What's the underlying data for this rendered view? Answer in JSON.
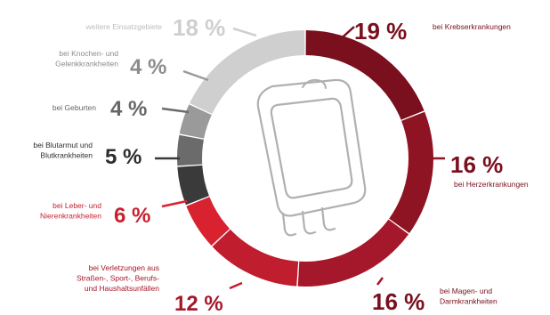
{
  "chart_data": {
    "type": "pie",
    "style": "donut",
    "unit": "%",
    "slices": [
      {
        "value": 19,
        "label_lines": [
          "bei Krebserkrankungen"
        ],
        "color": "#7a0f1e",
        "pct_color": "#7a0f1e",
        "label_color": "#7a0f1e"
      },
      {
        "value": 16,
        "label_lines": [
          "bei Herzerkrankungen"
        ],
        "color": "#8e1323",
        "pct_color": "#7a0f1e",
        "label_color": "#7a0f1e"
      },
      {
        "value": 16,
        "label_lines": [
          "bei Magen- und",
          "Darmkrankheiten"
        ],
        "color": "#a5172a",
        "pct_color": "#7a0f1e",
        "label_color": "#7a0f1e"
      },
      {
        "value": 12,
        "label_lines": [
          "bei Verletzungen aus",
          "Straßen-, Sport-, Berufs-",
          "und Haushaltsunfällen"
        ],
        "color": "#c01d2f",
        "pct_color": "#a5172a",
        "label_color": "#a5172a"
      },
      {
        "value": 6,
        "label_lines": [
          "bei Leber- und",
          "Nierenkrankheiten"
        ],
        "color": "#d9222f",
        "pct_color": "#c8202f",
        "label_color": "#c8202f"
      },
      {
        "value": 5,
        "label_lines": [
          "bei Blutarmut und",
          "Blutkrankheiten"
        ],
        "color": "#3a3a3a",
        "pct_color": "#2e2e2e",
        "label_color": "#2e2e2e"
      },
      {
        "value": 4,
        "label_lines": [
          "bei Geburten"
        ],
        "color": "#6b6b6b",
        "pct_color": "#666666",
        "label_color": "#666666"
      },
      {
        "value": 4,
        "label_lines": [
          "bei Knochen- und",
          "Gelenkkrankheiten"
        ],
        "color": "#9a9a9a",
        "pct_color": "#8c8c8c",
        "label_color": "#8c8c8c"
      },
      {
        "value": 18,
        "label_lines": [
          "weitere Einsatzgebiete"
        ],
        "color": "#cfcfcf",
        "pct_color": "#cfcfcf",
        "label_color": "#bdbdbd"
      }
    ]
  }
}
